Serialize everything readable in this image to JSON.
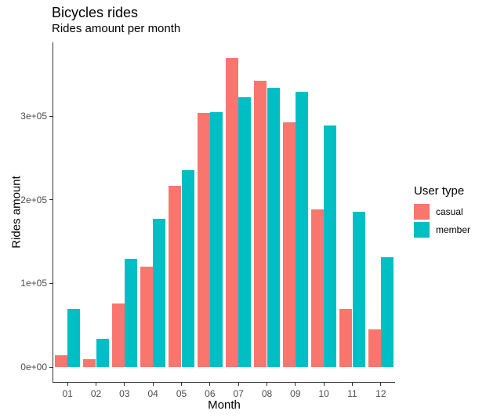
{
  "title": "Bicycles rides",
  "subtitle": "Rides amount per month",
  "chart_data": {
    "type": "bar",
    "grouped": true,
    "title": "Bicycles rides",
    "subtitle": "Rides amount per month",
    "xlabel": "Month",
    "ylabel": "Rides amount",
    "legend_title": "User type",
    "legend_position": "right",
    "grid": false,
    "ylim": [
      0,
      388000
    ],
    "categories": [
      "01",
      "02",
      "03",
      "04",
      "05",
      "06",
      "07",
      "08",
      "09",
      "10",
      "11",
      "12"
    ],
    "series": [
      {
        "name": "casual",
        "color": "#F8766D",
        "values": [
          14000,
          9000,
          76000,
          120000,
          217000,
          304000,
          370000,
          342000,
          293000,
          189000,
          69000,
          45000
        ]
      },
      {
        "name": "member",
        "color": "#00BFC4",
        "values": [
          69000,
          34000,
          129000,
          177000,
          235000,
          305000,
          323000,
          334000,
          329000,
          289000,
          186000,
          131000
        ]
      }
    ],
    "y_ticks": [
      {
        "value": 0,
        "label": "0e+00"
      },
      {
        "value": 100000,
        "label": "1e+05"
      },
      {
        "value": 200000,
        "label": "2e+05"
      },
      {
        "value": 300000,
        "label": "3e+05"
      }
    ]
  }
}
